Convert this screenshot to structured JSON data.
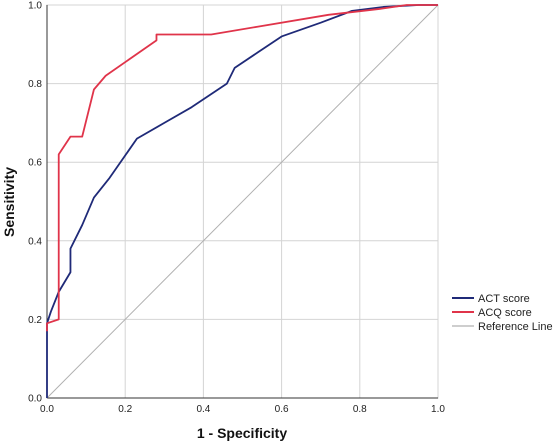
{
  "chart_data": {
    "type": "line",
    "xlabel": "1 - Specificity",
    "ylabel": "Sensitivity",
    "xlim": [
      0,
      1
    ],
    "ylim": [
      0,
      1
    ],
    "x_ticks": [
      "0.0",
      "0.2",
      "0.4",
      "0.6",
      "0.8",
      "1.0"
    ],
    "y_ticks": [
      "0.0",
      "0.2",
      "0.4",
      "0.6",
      "0.8",
      "1.0"
    ],
    "grid": true,
    "legend_position": "right",
    "series": [
      {
        "name": "ACT score",
        "color": "#1f2a78",
        "points": [
          [
            0.0,
            0.0
          ],
          [
            0.0,
            0.19
          ],
          [
            0.01,
            0.22
          ],
          [
            0.03,
            0.27
          ],
          [
            0.06,
            0.32
          ],
          [
            0.06,
            0.38
          ],
          [
            0.09,
            0.44
          ],
          [
            0.12,
            0.51
          ],
          [
            0.16,
            0.56
          ],
          [
            0.23,
            0.66
          ],
          [
            0.3,
            0.7
          ],
          [
            0.37,
            0.74
          ],
          [
            0.46,
            0.8
          ],
          [
            0.48,
            0.84
          ],
          [
            0.54,
            0.88
          ],
          [
            0.6,
            0.92
          ],
          [
            0.7,
            0.955
          ],
          [
            0.78,
            0.985
          ],
          [
            0.86,
            0.995
          ],
          [
            0.95,
            1.0
          ],
          [
            1.0,
            1.0
          ]
        ]
      },
      {
        "name": "ACQ score",
        "color": "#e0344a",
        "points": [
          [
            0.0,
            0.17
          ],
          [
            0.0,
            0.19
          ],
          [
            0.03,
            0.2
          ],
          [
            0.03,
            0.62
          ],
          [
            0.06,
            0.665
          ],
          [
            0.09,
            0.665
          ],
          [
            0.12,
            0.785
          ],
          [
            0.15,
            0.82
          ],
          [
            0.28,
            0.91
          ],
          [
            0.28,
            0.925
          ],
          [
            0.42,
            0.925
          ],
          [
            0.54,
            0.945
          ],
          [
            0.72,
            0.975
          ],
          [
            0.85,
            0.99
          ],
          [
            0.92,
            1.0
          ],
          [
            1.0,
            1.0
          ]
        ]
      },
      {
        "name": "Reference Line",
        "color": "#b0b0b0",
        "points": [
          [
            0,
            0
          ],
          [
            1,
            1
          ]
        ]
      }
    ]
  }
}
